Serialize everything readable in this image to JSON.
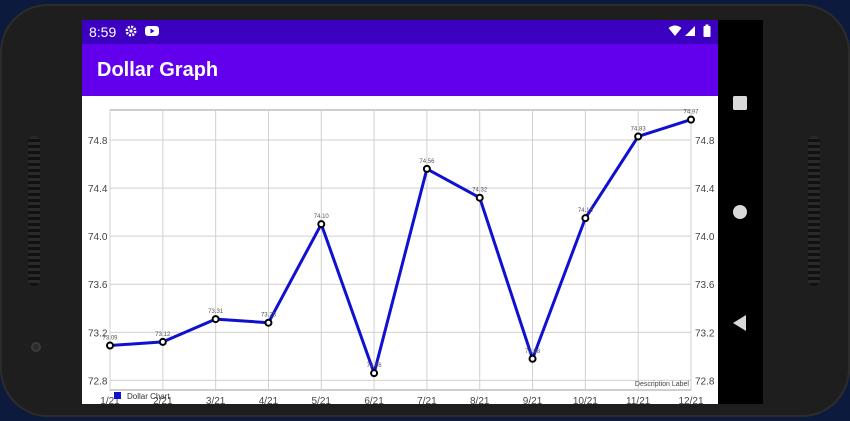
{
  "status_bar": {
    "time": "8:59"
  },
  "app_bar": {
    "title": "Dollar Graph"
  },
  "chart_data": {
    "type": "line",
    "categories": [
      "1/21",
      "2/21",
      "3/21",
      "4/21",
      "5/21",
      "6/21",
      "7/21",
      "8/21",
      "9/21",
      "10/21",
      "11/21",
      "12/21"
    ],
    "series": [
      {
        "name": "Dollar Chart",
        "values": [
          73.09,
          73.12,
          73.31,
          73.28,
          74.1,
          72.86,
          74.56,
          74.32,
          72.98,
          74.15,
          74.83,
          74.97
        ],
        "value_labels": [
          "73.09",
          "73.12",
          "73.31",
          "73.28",
          "74.10",
          "72.86",
          "74.56",
          "74.32",
          "72.98",
          "74.15",
          "74.83",
          "74.97"
        ],
        "color": "#1010d0"
      }
    ],
    "yticks": [
      "72.8",
      "73.2",
      "73.6",
      "74.0",
      "74.4",
      "74.8"
    ],
    "ylim": [
      72.72,
      75.05
    ],
    "grid": true,
    "description": "Description Label",
    "legend_position": "bottom-left"
  },
  "colors": {
    "status_bar": "#3b00c0",
    "app_bar": "#6200ee",
    "line": "#1010d0"
  }
}
